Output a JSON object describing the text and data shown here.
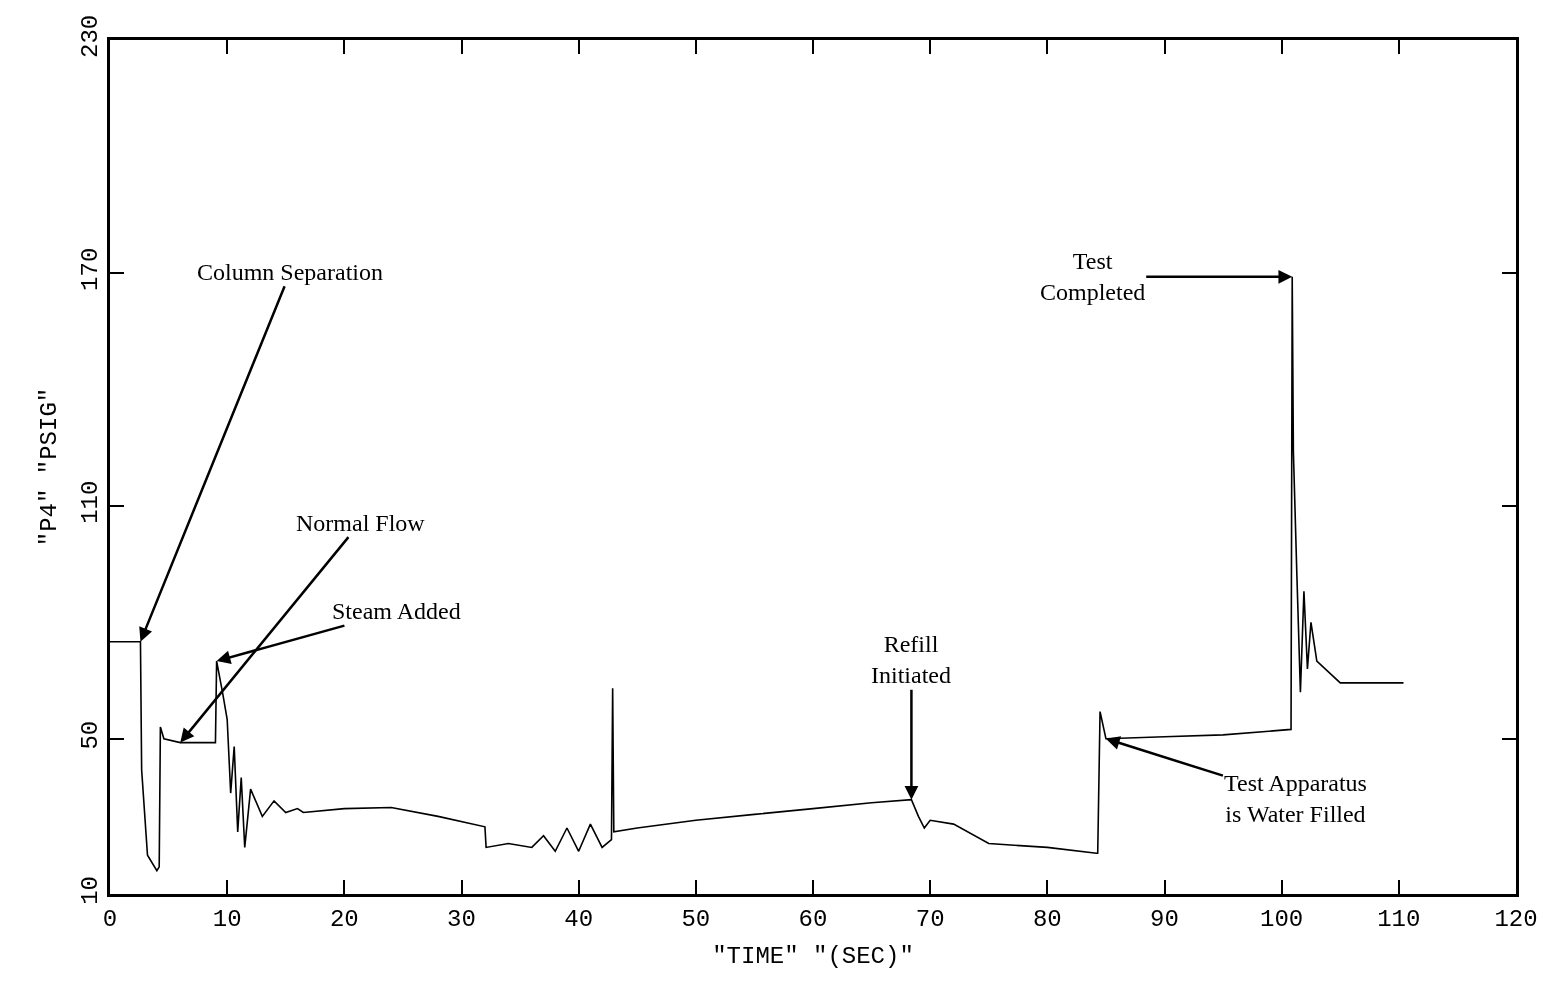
{
  "chart_data": {
    "type": "line",
    "xlabel": "\"TIME\" \"(SEC)\"",
    "ylabel": "\"P4\" \"PSIG\"",
    "x": [
      0,
      2.6,
      2.7,
      3.2,
      4.0,
      4.2,
      4.3,
      4.6,
      6,
      8,
      9.0,
      9.1,
      9.6,
      10.0,
      10.3,
      10.6,
      10.9,
      11.2,
      11.5,
      12,
      13,
      14,
      15,
      16,
      16.5,
      20,
      24,
      28,
      32,
      32.1,
      34,
      36,
      37,
      38,
      39,
      40,
      41,
      42,
      42.8,
      42.9,
      43.0,
      45,
      50,
      55,
      60,
      65,
      68.4,
      69.0,
      69.5,
      70,
      72,
      75,
      80,
      84.2,
      84.3,
      84.5,
      85,
      90,
      95,
      100.8,
      100.9,
      101.0,
      101.3,
      101.6,
      101.9,
      102.2,
      102.5,
      103,
      105,
      110.4
    ],
    "series": [
      {
        "color": "#000000",
        "values": [
          75,
          75,
          42,
          20,
          16,
          17,
          53,
          50,
          49,
          49,
          49,
          70,
          62,
          55,
          36,
          48,
          26,
          40,
          22,
          37,
          30,
          34,
          31,
          32,
          31,
          32,
          32.3,
          30,
          27.3,
          22,
          23,
          22,
          25,
          21,
          27,
          21,
          28,
          22,
          24,
          63,
          26,
          27,
          29,
          30.5,
          32,
          33.5,
          34.3,
          30,
          27,
          29,
          28,
          23,
          22,
          20.5,
          20.5,
          57,
          50,
          50.5,
          51,
          52.4,
          169,
          124,
          92,
          62,
          88,
          68,
          80,
          70,
          64.4,
          64.4
        ]
      }
    ],
    "xlim": [
      0,
      120
    ],
    "xticks": [
      0,
      10,
      20,
      30,
      40,
      50,
      60,
      70,
      80,
      90,
      100,
      110,
      120
    ],
    "ylim": [
      10,
      230
    ],
    "yticks": [
      10,
      50,
      110,
      170,
      230
    ],
    "marker": "none",
    "line_style": "solid",
    "annotations": [
      {
        "text": "Column Separation",
        "x": 2.6,
        "y": 75
      },
      {
        "text": "Normal Flow",
        "x": 6,
        "y": 49
      },
      {
        "text": "Steam Added",
        "x": 9.1,
        "y": 70
      },
      {
        "text": "Refill\nInitiated",
        "x": 68.4,
        "y": 34.3
      },
      {
        "text": "Test\nCompleted",
        "x": 100.9,
        "y": 169
      },
      {
        "text": "Test Apparatus\nis Water Filled",
        "x": 85,
        "y": 50
      }
    ]
  }
}
